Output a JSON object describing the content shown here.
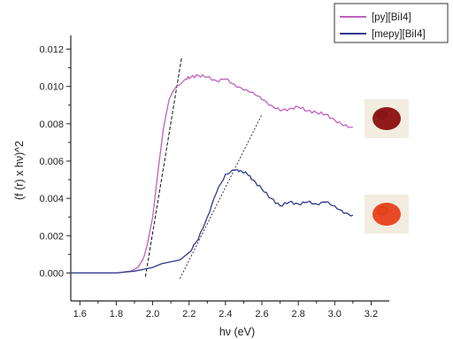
{
  "chart_data": {
    "type": "line",
    "title": "",
    "xlabel": "hν (eV)",
    "ylabel": "(f (r) x hν)^2",
    "xlim": [
      1.55,
      3.3
    ],
    "ylim": [
      -0.0015,
      0.0125
    ],
    "x_ticks": [
      1.6,
      1.8,
      2.0,
      2.2,
      2.4,
      2.6,
      2.8,
      3.0,
      3.2
    ],
    "y_ticks": [
      0.0,
      0.002,
      0.004,
      0.006,
      0.008,
      0.01,
      0.012
    ],
    "x_tick_labels": [
      "1.6",
      "1.8",
      "2.0",
      "2.2",
      "2.4",
      "2.6",
      "2.8",
      "3.0",
      "3.2"
    ],
    "y_tick_labels": [
      "0.000",
      "0.002",
      "0.004",
      "0.006",
      "0.008",
      "0.010",
      "0.012"
    ],
    "legend_position": "top-right",
    "grid": false,
    "series": [
      {
        "name": "[py][BiI4]",
        "color": "#c060c0",
        "x": [
          1.55,
          1.8,
          1.88,
          1.92,
          1.95,
          1.97,
          2.0,
          2.03,
          2.06,
          2.09,
          2.11,
          2.13,
          2.15,
          2.18,
          2.21,
          2.25,
          2.3,
          2.35,
          2.4,
          2.45,
          2.5,
          2.55,
          2.6,
          2.65,
          2.7,
          2.75,
          2.8,
          2.85,
          2.9,
          2.95,
          3.0,
          3.05,
          3.1
        ],
        "y": [
          0.0,
          0.0,
          0.0001,
          0.0003,
          0.0008,
          0.0015,
          0.003,
          0.0055,
          0.0078,
          0.0093,
          0.0097,
          0.01,
          0.0101,
          0.0104,
          0.0105,
          0.0106,
          0.0105,
          0.0103,
          0.0104,
          0.0101,
          0.0098,
          0.0097,
          0.0093,
          0.009,
          0.0087,
          0.0088,
          0.0089,
          0.0087,
          0.0086,
          0.0085,
          0.0082,
          0.0079,
          0.0078
        ]
      },
      {
        "name": "[mepy][BiI4]",
        "color": "#2e3a8c",
        "x": [
          1.55,
          1.8,
          1.9,
          1.95,
          2.0,
          2.05,
          2.1,
          2.15,
          2.2,
          2.25,
          2.3,
          2.35,
          2.4,
          2.45,
          2.48,
          2.52,
          2.55,
          2.6,
          2.65,
          2.7,
          2.75,
          2.8,
          2.85,
          2.9,
          2.95,
          3.0,
          3.05,
          3.1
        ],
        "y": [
          0.0,
          0.0,
          0.0001,
          0.0002,
          0.0003,
          0.0005,
          0.0006,
          0.0007,
          0.0011,
          0.0018,
          0.003,
          0.0043,
          0.0053,
          0.0055,
          0.0055,
          0.0053,
          0.005,
          0.0045,
          0.004,
          0.0036,
          0.0038,
          0.0037,
          0.0038,
          0.0037,
          0.0038,
          0.0036,
          0.0032,
          0.0031
        ]
      }
    ],
    "tangent_lines": [
      {
        "x": [
          1.96,
          2.16
        ],
        "y": [
          -0.0002,
          0.0116
        ],
        "color": "#111111"
      },
      {
        "x": [
          2.15,
          2.6
        ],
        "y": [
          -0.0003,
          0.0085
        ],
        "color": "#333333"
      }
    ]
  },
  "sample_images": [
    {
      "name": "dark-red-powder",
      "color": "#8b1010"
    },
    {
      "name": "orange-red-powder",
      "color": "#e8401a"
    }
  ]
}
